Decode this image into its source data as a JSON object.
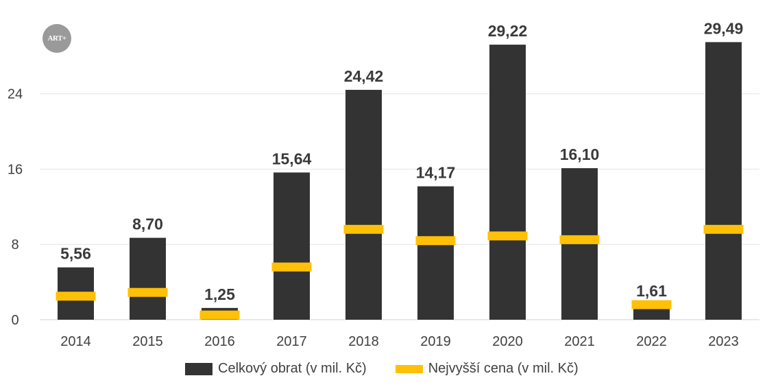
{
  "logo_text": "ART+",
  "chart_data": {
    "type": "bar",
    "categories": [
      "2014",
      "2015",
      "2016",
      "2017",
      "2018",
      "2019",
      "2020",
      "2021",
      "2022",
      "2023"
    ],
    "series": [
      {
        "name": "Celkový obrat (v mil. Kč)",
        "kind": "bar",
        "values": [
          5.56,
          8.7,
          1.25,
          15.64,
          24.42,
          14.17,
          29.22,
          16.1,
          1.61,
          29.49
        ],
        "labels": [
          "5,56",
          "8,70",
          "1,25",
          "15,64",
          "24,42",
          "14,17",
          "29,22",
          "16,10",
          "1,61",
          "29,49"
        ],
        "color": "#333333"
      },
      {
        "name": "Nejvyšší cena (v mil. Kč)",
        "kind": "marker",
        "values": [
          2.5,
          2.9,
          0.5,
          5.6,
          9.6,
          8.4,
          8.9,
          8.5,
          1.6,
          9.6
        ],
        "color": "#FFC107"
      }
    ],
    "yticks": [
      "0",
      "8",
      "16",
      "24"
    ],
    "ylim": [
      0,
      32
    ],
    "grid": true,
    "legend": "bottom"
  }
}
